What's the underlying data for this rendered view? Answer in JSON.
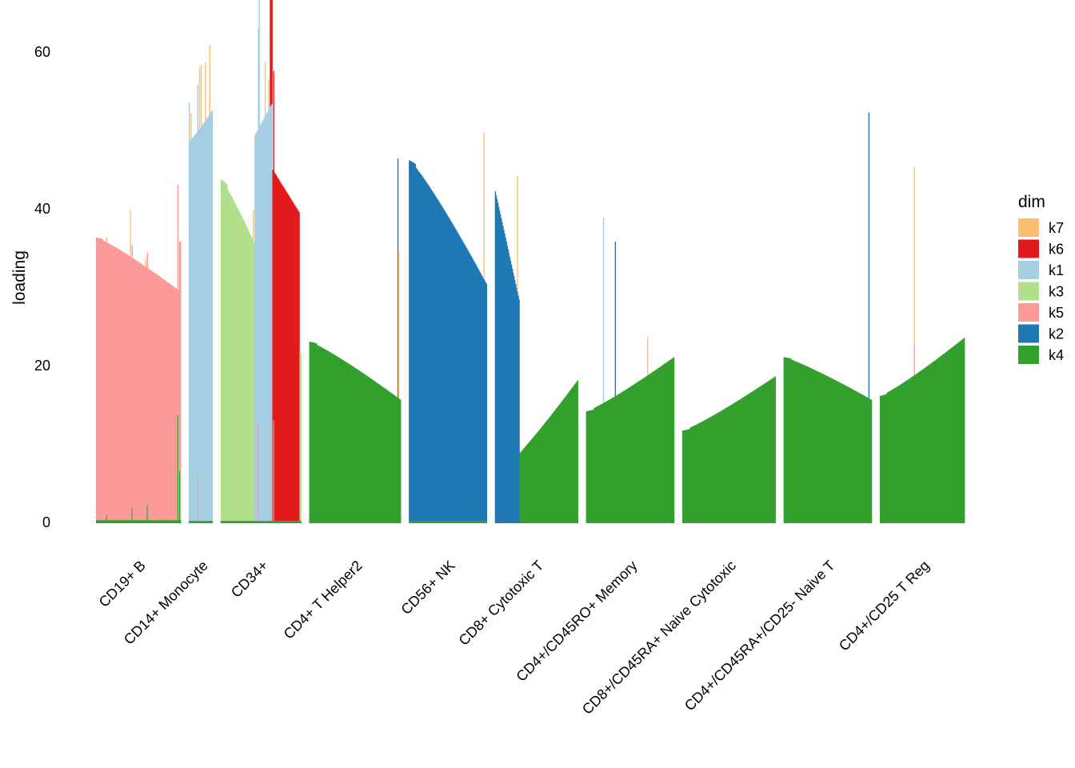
{
  "chart_data": {
    "type": "bar",
    "subtype": "stacked-structure-plot",
    "title": "",
    "xlabel": "",
    "ylabel": "loading",
    "ylim": [
      0,
      63
    ],
    "yticks": [
      0,
      20,
      40,
      60
    ],
    "legend": {
      "title": "dim",
      "position": "right",
      "order": [
        "k7",
        "k6",
        "k1",
        "k3",
        "k5",
        "k2",
        "k4"
      ]
    },
    "colors": {
      "k7": "#FDBF6F",
      "k6": "#E31A1C",
      "k1": "#A6CEE3",
      "k3": "#B2DF8A",
      "k5": "#FB9A99",
      "k2": "#1F78B4",
      "k4": "#33A02C"
    },
    "groups": [
      {
        "label": "CD19+ B",
        "n": 100,
        "primary": "k5",
        "primary_range": [
          37,
          30
        ],
        "last_up": 36.5,
        "base": {
          "k4": 0.4
        },
        "spikes": [
          {
            "i": 12,
            "dim": "k4",
            "v": 0.6
          },
          {
            "i": 40,
            "dim": "k7",
            "v": 6
          },
          {
            "i": 42,
            "dim": "k4",
            "v": 1.6
          },
          {
            "i": 58,
            "dim": "k7",
            "v": 1
          },
          {
            "i": 60,
            "dim": "k4",
            "v": 2
          },
          {
            "i": 96,
            "dim": "k4",
            "v": 13.6
          },
          {
            "i": 98,
            "dim": "k4",
            "v": 6.4
          }
        ]
      },
      {
        "label": "CD14+ Monocyte",
        "n": 28,
        "primary": "k1",
        "primary_range": [
          49.5,
          53.5
        ],
        "first": 54.5,
        "base": {
          "k4": 0.3
        },
        "spikes": [
          {
            "i": 2,
            "dim": "k7",
            "v": 3.5
          },
          {
            "i": 10,
            "dim": "k5",
            "v": 6
          },
          {
            "i": 12,
            "dim": "k7",
            "v": 8
          },
          {
            "i": 14,
            "dim": "k7",
            "v": 8
          },
          {
            "i": 19,
            "dim": "k7",
            "v": 7.5
          },
          {
            "i": 24,
            "dim": "k7",
            "v": 9
          }
        ]
      },
      {
        "label": "CD34+",
        "n": 95,
        "primary": "k3",
        "primary_range": [
          44.5,
          22
        ],
        "base": {
          "k4": 0.3
        },
        "extra": [
          {
            "dim": "k6",
            "from": 58,
            "to": 92,
            "range": [
              46,
              40
            ]
          },
          {
            "dim": "k1",
            "from": 40,
            "to": 60,
            "range": [
              50,
              54
            ]
          }
        ],
        "spikes": [
          {
            "i": 38,
            "dim": "k7",
            "v": 4
          },
          {
            "i": 45,
            "dim": "k1",
            "v": 57
          },
          {
            "i": 52,
            "dim": "k7",
            "v": 7
          },
          {
            "i": 56,
            "dim": "k7",
            "v": 4
          },
          {
            "i": 62,
            "dim": "k5",
            "v": 13
          },
          {
            "i": 44,
            "dim": "k5",
            "v": 13
          }
        ]
      },
      {
        "label": "CD4+ T Helper2",
        "n": 108,
        "primary": "k4",
        "primary_range": [
          23.5,
          16
        ],
        "base": {},
        "spikes": [
          {
            "i": 104,
            "dim": "k2",
            "v": 31
          },
          {
            "i": 105,
            "dim": "k7",
            "v": 19
          }
        ]
      },
      {
        "label": "CD56+ NK",
        "n": 92,
        "primary": "k2",
        "primary_range": [
          47,
          31
        ],
        "base": {
          "k4": 0.3
        },
        "spikes": [
          {
            "i": 88,
            "dim": "k7",
            "v": 19
          }
        ]
      },
      {
        "label": "CD8+ Cytotoxic T",
        "n": 98,
        "primary": "k4",
        "primary_range": [
          6,
          18.5
        ],
        "base": {},
        "extra": [
          {
            "dim": "k2",
            "from": 0,
            "to": 28,
            "range": [
              43,
              29
            ]
          }
        ],
        "spikes": [
          {
            "i": 26,
            "dim": "k7",
            "v": 15
          }
        ]
      },
      {
        "label": "CD4+/CD45RO+ Memory",
        "n": 104,
        "primary": "k4",
        "primary_range": [
          14.5,
          21.5
        ],
        "base": {},
        "spikes": [
          {
            "i": 20,
            "dim": "k1",
            "v": 24
          },
          {
            "i": 34,
            "dim": "k2",
            "v": 20
          },
          {
            "i": 72,
            "dim": "k7",
            "v": 5
          }
        ]
      },
      {
        "label": "CD8+/CD45RA+ Naive Cytotoxic",
        "n": 110,
        "primary": "k4",
        "primary_range": [
          12,
          19
        ],
        "base": {},
        "spikes": []
      },
      {
        "label": "CD4+/CD45RA+/CD25- Naive T",
        "n": 104,
        "primary": "k4",
        "primary_range": [
          21.5,
          16
        ],
        "base": {},
        "spikes": [
          {
            "i": 100,
            "dim": "k2",
            "v": 37
          }
        ]
      },
      {
        "label": "CD4+/CD25 T Reg",
        "n": 100,
        "primary": "k4",
        "primary_range": [
          16.5,
          24
        ],
        "base": {},
        "spikes": [
          {
            "i": 40,
            "dim": "k5",
            "v": 4
          },
          {
            "i": 40,
            "dim": "k7",
            "v": 23
          }
        ]
      }
    ]
  }
}
